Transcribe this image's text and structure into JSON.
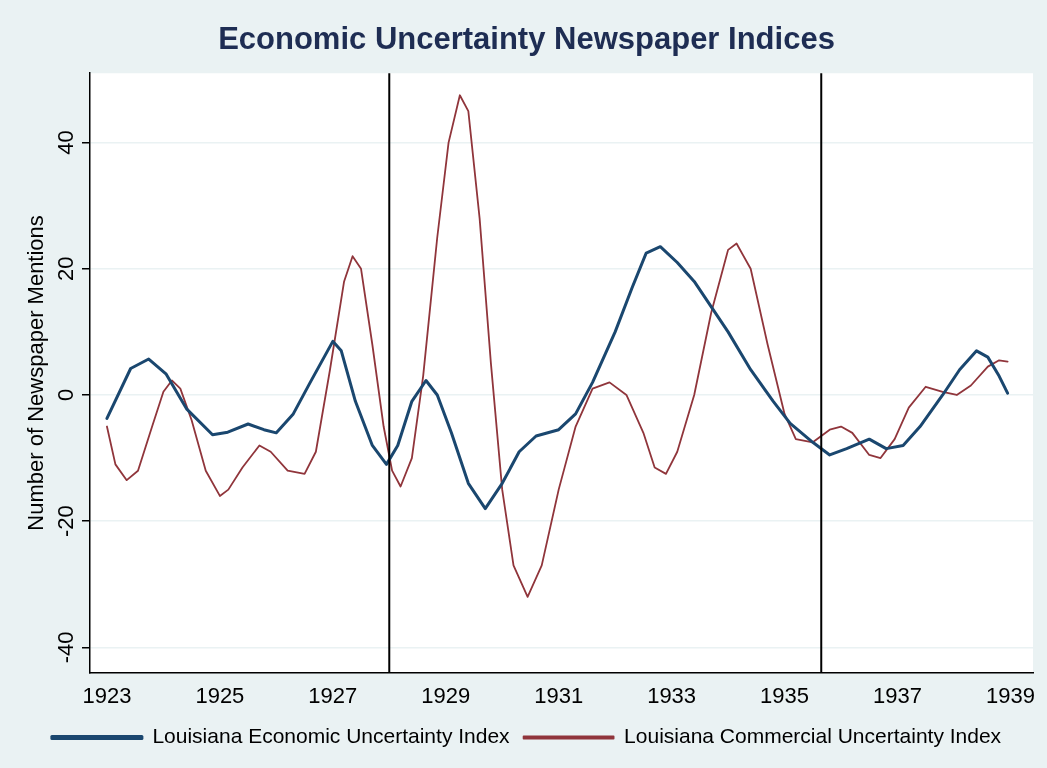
{
  "chart_data": {
    "type": "line",
    "title": "Economic Uncertainty Newspaper Indices",
    "ylabel": "Number of Newspaper Mentions",
    "xlim": [
      1922.7,
      1939.4
    ],
    "ylim": [
      -44,
      51
    ],
    "xticks": [
      1923,
      1925,
      1927,
      1929,
      1931,
      1933,
      1935,
      1937,
      1939
    ],
    "yticks": [
      -40,
      -20,
      0,
      20,
      40
    ],
    "grid": "y",
    "legend": "bottom",
    "marker": "none",
    "line_style": "solid",
    "ref_lines": [
      {
        "axis": "x",
        "value": 1928.0,
        "color": "#000000"
      },
      {
        "axis": "x",
        "value": 1935.65,
        "color": "#000000"
      }
    ],
    "series": [
      {
        "name": "Louisiana Economic Uncertainty Index",
        "color": "#1a476f",
        "x": [
          1923,
          1923.42,
          1923.74,
          1924.05,
          1924.41,
          1924.87,
          1925.14,
          1925.5,
          1925.78,
          1926,
          1926.3,
          1926.6,
          1927,
          1927.15,
          1927.4,
          1927.7,
          1927.95,
          1928.15,
          1928.4,
          1928.65,
          1928.85,
          1929.1,
          1929.4,
          1929.7,
          1930,
          1930.3,
          1930.6,
          1931,
          1931.3,
          1931.6,
          1932,
          1932.3,
          1932.55,
          1932.8,
          1933.1,
          1933.4,
          1933.7,
          1934,
          1934.4,
          1934.8,
          1935.1,
          1935.5,
          1935.8,
          1936.1,
          1936.5,
          1936.8,
          1937.1,
          1937.4,
          1937.8,
          1938.1,
          1938.4,
          1938.6,
          1938.8,
          1938.95
        ],
        "values": [
          -3.7,
          4.2,
          5.7,
          3.3,
          -2.2,
          -6.3,
          -5.9,
          -4.6,
          -5.5,
          -6,
          -3,
          2,
          8.5,
          7,
          -1,
          -8,
          -11,
          -8,
          -1,
          2.3,
          0,
          -6,
          -14,
          -18,
          -14,
          -9,
          -6.5,
          -5.5,
          -3,
          2,
          10,
          17,
          22.5,
          23.5,
          21,
          18,
          14,
          10,
          4,
          -1,
          -4.5,
          -7.5,
          -9.5,
          -8.5,
          -7,
          -8.5,
          -8,
          -5,
          0,
          4,
          7,
          6,
          3,
          0.3
        ]
      },
      {
        "name": "Louisiana Commercial Uncertainty Index",
        "color": "#90353b",
        "x": [
          1923,
          1923.15,
          1923.35,
          1923.55,
          1923.8,
          1924,
          1924.15,
          1924.3,
          1924.5,
          1924.75,
          1925,
          1925.15,
          1925.4,
          1925.7,
          1925.9,
          1926.2,
          1926.5,
          1926.7,
          1926.95,
          1927.2,
          1927.35,
          1927.5,
          1927.7,
          1927.9,
          1928.05,
          1928.2,
          1928.4,
          1928.6,
          1928.85,
          1929.05,
          1929.25,
          1929.4,
          1929.6,
          1929.8,
          1930,
          1930.2,
          1930.45,
          1930.7,
          1931,
          1931.3,
          1931.6,
          1931.9,
          1932.2,
          1932.5,
          1932.7,
          1932.9,
          1933.1,
          1933.4,
          1933.7,
          1934,
          1934.15,
          1934.4,
          1934.7,
          1935,
          1935.2,
          1935.5,
          1935.8,
          1936,
          1936.2,
          1936.5,
          1936.7,
          1936.95,
          1937.2,
          1937.5,
          1937.8,
          1938.05,
          1938.3,
          1938.6,
          1938.8,
          1938.95
        ],
        "values": [
          -5,
          -11,
          -13.5,
          -12,
          -5,
          0.5,
          2.3,
          1,
          -4,
          -12,
          -16,
          -15,
          -11.5,
          -8,
          -9,
          -12,
          -12.5,
          -9,
          4,
          18,
          22,
          20,
          8,
          -5,
          -12,
          -14.5,
          -10,
          3,
          25,
          40,
          47.5,
          45,
          28,
          5,
          -15,
          -27,
          -32,
          -27,
          -15,
          -5,
          1,
          2,
          0,
          -6,
          -11.5,
          -12.5,
          -9,
          0,
          13,
          23,
          24,
          20,
          8,
          -3,
          -7,
          -7.5,
          -5.5,
          -5,
          -6,
          -9.5,
          -10,
          -7,
          -2,
          1.3,
          0.5,
          0,
          1.5,
          4.5,
          5.5,
          5.3
        ]
      }
    ]
  }
}
